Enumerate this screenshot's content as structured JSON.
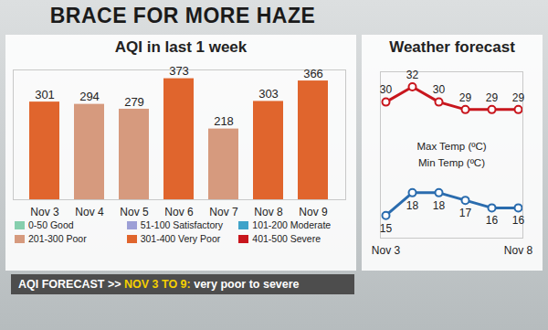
{
  "header": {
    "title": "BRACE FOR MORE HAZE"
  },
  "chart_data": [
    {
      "type": "bar",
      "title": "AQI in last 1 week",
      "categories": [
        "Nov 3",
        "Nov 4",
        "Nov 5",
        "Nov 6",
        "Nov 7",
        "Nov 8",
        "Nov 9"
      ],
      "values": [
        301,
        294,
        279,
        373,
        218,
        303,
        366
      ],
      "colors": [
        "#e0652d",
        "#d69a7e",
        "#d69a7e",
        "#e0652d",
        "#d69a7e",
        "#e0652d",
        "#e0652d"
      ],
      "ylim": [
        0,
        400
      ],
      "data_labels": true,
      "tick_labels": "x",
      "color_key": [
        {
          "label": "0-50 Good",
          "color": "#86cfae"
        },
        {
          "label": "51-100 Satisfactory",
          "color": "#9c9fd6"
        },
        {
          "label": "101-200 Moderate",
          "color": "#3fa3c9"
        },
        {
          "label": "201-300 Poor",
          "color": "#d69a7e"
        },
        {
          "label": "301-400 Very Poor",
          "color": "#e0652d"
        },
        {
          "label": "401-500 Severe",
          "color": "#c8161d"
        }
      ],
      "annotation": [
        "AQI FORECAST >>",
        "NOV 3 TO 9:",
        "very poor to severe"
      ]
    },
    {
      "type": "line",
      "title": "Weather forecast",
      "categories": [
        "Nov 3",
        null,
        null,
        null,
        null,
        "Nov 8"
      ],
      "series": [
        {
          "name": "Max Temp (ºC)",
          "color": "#c8161d",
          "marker": "circle",
          "values": [
            30,
            32,
            30,
            29,
            29,
            29
          ]
        },
        {
          "name": "Min Temp (ºC)",
          "color": "#2a6cae",
          "marker": "circle",
          "values": [
            15,
            18,
            18,
            17,
            16,
            16
          ]
        }
      ],
      "ylim": [
        12,
        34
      ],
      "data_labels": true,
      "tick_labels": "x"
    }
  ]
}
